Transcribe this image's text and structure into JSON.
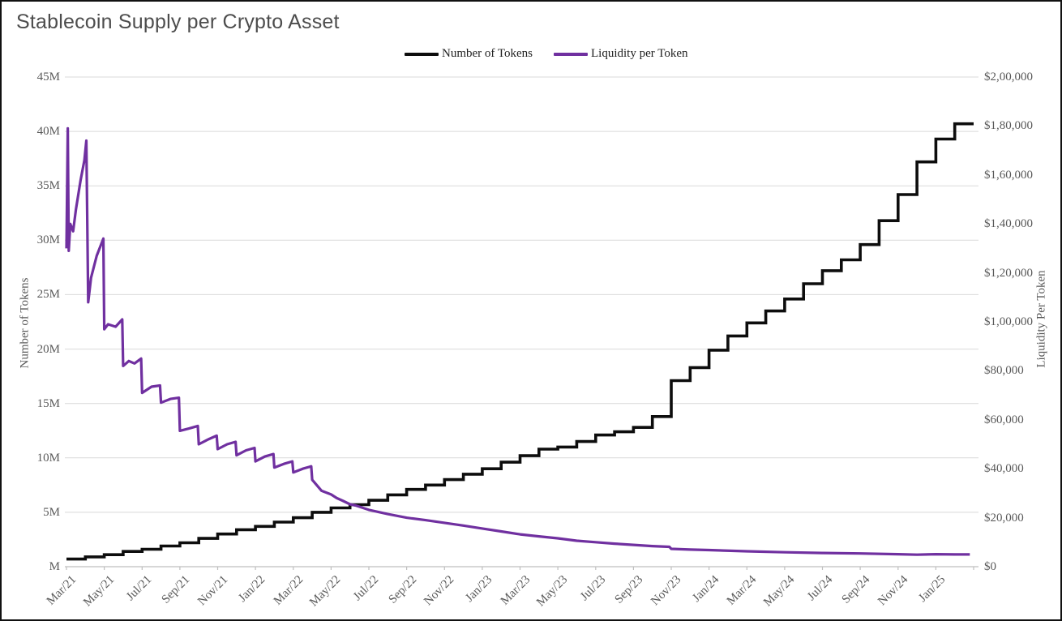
{
  "title": "Stablecoin Supply per Crypto Asset",
  "chart_data": {
    "type": "line",
    "title": "Stablecoin Supply per Crypto Asset",
    "grid": "horizontal",
    "legend_position": "top-center",
    "x_tick_labels": [
      "Mar/21",
      "May/21",
      "Jul/21",
      "Sep/21",
      "Nov/21",
      "Jan/22",
      "Mar/22",
      "May/22",
      "Jul/22",
      "Sep/22",
      "Nov/22",
      "Jan/23",
      "Mar/23",
      "May/23",
      "Jul/23",
      "Sep/23",
      "Nov/23",
      "Jan/24",
      "Mar/24",
      "May/24",
      "Jul/24",
      "Sep/24",
      "Nov/24",
      "Jan/25"
    ],
    "left_axis": {
      "label": "Number of Tokens",
      "tick_labels": [
        "M",
        "5M",
        "10M",
        "15M",
        "20M",
        "25M",
        "30M",
        "35M",
        "40M",
        "45M"
      ],
      "tick_values_millions": [
        0,
        5,
        10,
        15,
        20,
        25,
        30,
        35,
        40,
        45
      ],
      "min": 0,
      "max_millions": 45
    },
    "right_axis": {
      "label": "Liquidity Per Token",
      "tick_labels": [
        "$0",
        "$20,000",
        "$40,000",
        "$60,000",
        "$80,000",
        "$1,00,000",
        "$1,20,000",
        "$1,40,000",
        "$1,60,000",
        "$1,80,000",
        "$2,00,000"
      ],
      "tick_values": [
        0,
        20000,
        40000,
        60000,
        80000,
        100000,
        120000,
        140000,
        160000,
        180000,
        200000
      ],
      "min": 0,
      "max": 200000
    },
    "x_axis_span_months": 48,
    "series": [
      {
        "name": "Number of Tokens",
        "axis": "left",
        "style": "step",
        "color": "#0d0d0d",
        "unit": "millions of tokens, monthly Mar/21 - Feb/25",
        "values_millions": [
          0.7,
          0.9,
          1.1,
          1.4,
          1.6,
          1.9,
          2.2,
          2.6,
          3.0,
          3.4,
          3.7,
          4.1,
          4.5,
          5.0,
          5.4,
          5.7,
          6.1,
          6.6,
          7.1,
          7.5,
          8.0,
          8.5,
          9.0,
          9.6,
          10.2,
          10.8,
          11.0,
          11.5,
          12.1,
          12.4,
          12.8,
          13.8,
          17.1,
          18.3,
          19.9,
          21.2,
          22.4,
          23.5,
          24.6,
          26.0,
          27.2,
          28.2,
          29.6,
          31.8,
          34.2,
          37.2,
          39.3,
          40.7
        ]
      },
      {
        "name": "Liquidity per Token",
        "axis": "right",
        "style": "line",
        "color": "#7030a0",
        "unit": "dollars per token, x in months since Mar/21",
        "x_months": [
          0,
          0.07,
          0.12,
          0.2,
          0.35,
          0.5,
          0.75,
          0.95,
          1.05,
          1.15,
          1.3,
          1.6,
          1.95,
          2.0,
          2.2,
          2.6,
          2.95,
          3.0,
          3.3,
          3.6,
          3.95,
          4.0,
          4.5,
          4.95,
          5.0,
          5.5,
          5.95,
          6.0,
          6.5,
          6.95,
          7.0,
          7.5,
          7.95,
          8.0,
          8.5,
          8.95,
          9.0,
          9.5,
          9.95,
          10.0,
          10.5,
          10.95,
          11.0,
          11.5,
          11.95,
          12.0,
          12.5,
          12.95,
          13.0,
          13.5,
          14.0,
          14.3,
          14.6,
          15.0,
          15.3,
          16.0,
          17.0,
          18.0,
          19.0,
          20.0,
          21.0,
          22.0,
          23.0,
          24.0,
          25.0,
          26.0,
          27.0,
          28.0,
          29.0,
          30.0,
          31.0,
          31.9,
          32.0,
          33.0,
          34.0,
          36.0,
          38.0,
          40.0,
          42.0,
          44.0,
          45.0,
          46.0,
          47.0,
          47.8
        ],
        "values": [
          130000,
          179000,
          129000,
          140000,
          137000,
          146000,
          158000,
          166000,
          174000,
          108000,
          118000,
          127000,
          134000,
          97000,
          99000,
          98000,
          101000,
          82000,
          84000,
          83000,
          85000,
          71000,
          73500,
          74000,
          67000,
          68500,
          69000,
          55500,
          56500,
          57500,
          50000,
          52000,
          53500,
          48000,
          50000,
          51000,
          45500,
          47500,
          48500,
          43000,
          45000,
          46000,
          40500,
          42000,
          43000,
          38500,
          40000,
          41000,
          35500,
          31000,
          29500,
          28000,
          27000,
          25500,
          25000,
          23200,
          21500,
          20000,
          19000,
          17900,
          16800,
          15600,
          14400,
          13200,
          12400,
          11600,
          10600,
          10000,
          9400,
          8900,
          8400,
          8100,
          7300,
          7000,
          6800,
          6300,
          5900,
          5600,
          5400,
          5100,
          4900,
          5100,
          5000,
          5000
        ]
      }
    ]
  },
  "colors": {
    "grid": "#d9d9d9",
    "axis_line": "#bfbfbf",
    "tick_text": "#595959",
    "title_text": "#4d4d4d"
  }
}
